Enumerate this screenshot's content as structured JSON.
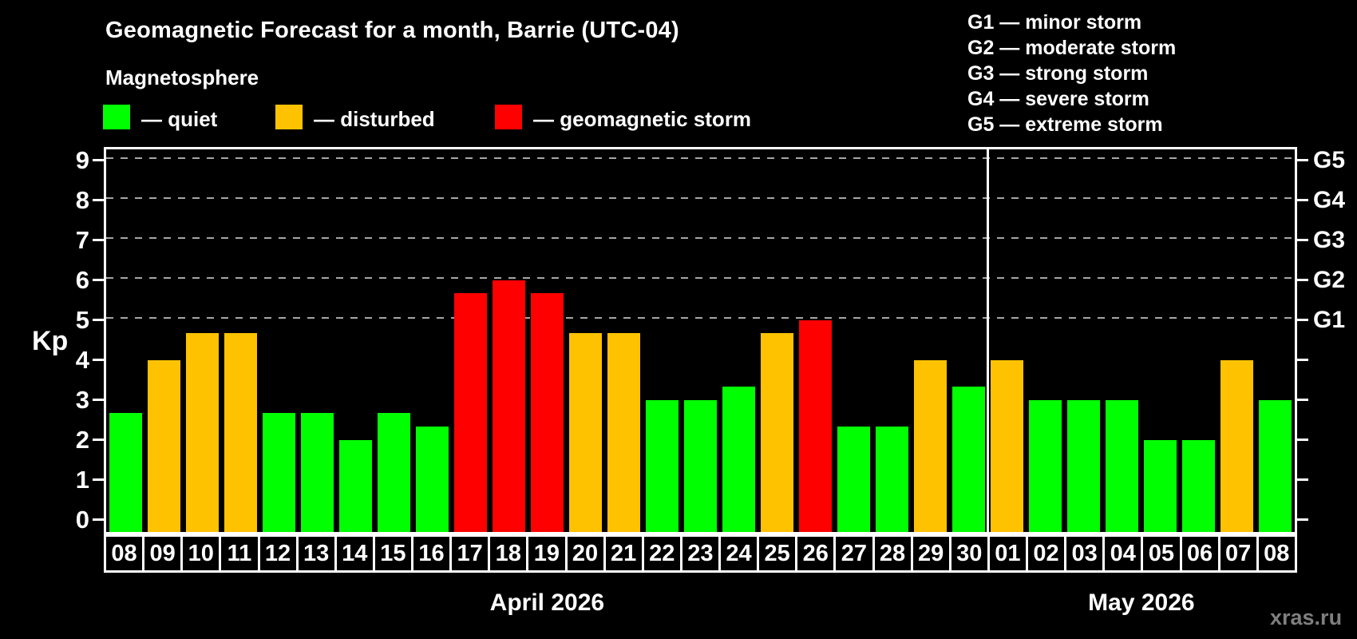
{
  "title": "Geomagnetic Forecast for a month, Barrie (UTC-04)",
  "subtitle": "Magnetosphere",
  "legend": {
    "items": [
      {
        "key": "quiet",
        "label": "— quiet"
      },
      {
        "key": "disturbed",
        "label": "— disturbed"
      },
      {
        "key": "storm",
        "label": "— geomagnetic storm"
      }
    ]
  },
  "storm_scale_legend": [
    "G1 — minor storm",
    "G2 — moderate storm",
    "G3 — strong storm",
    "G4 — severe storm",
    "G5 — extreme storm"
  ],
  "watermark": "xras.ru",
  "chart_data": {
    "type": "bar",
    "title": "Geomagnetic Forecast for a month, Barrie (UTC-04)",
    "ylabel": "Kp",
    "ylim": [
      0,
      9
    ],
    "yticks": [
      0,
      1,
      2,
      3,
      4,
      5,
      6,
      7,
      8,
      9
    ],
    "gridlines_at": [
      5,
      6,
      7,
      8,
      9
    ],
    "grid": "dashed horizontal at Kp 5-9 only",
    "right_axis": [
      {
        "kp": 5,
        "label": "G1"
      },
      {
        "kp": 6,
        "label": "G2"
      },
      {
        "kp": 7,
        "label": "G3"
      },
      {
        "kp": 8,
        "label": "G4"
      },
      {
        "kp": 9,
        "label": "G5"
      }
    ],
    "categories": [
      "08",
      "09",
      "10",
      "11",
      "12",
      "13",
      "14",
      "15",
      "16",
      "17",
      "18",
      "19",
      "20",
      "21",
      "22",
      "23",
      "24",
      "25",
      "26",
      "27",
      "28",
      "29",
      "30",
      "01",
      "02",
      "03",
      "04",
      "05",
      "06",
      "07",
      "08"
    ],
    "values": [
      2.67,
      4,
      4.67,
      4.67,
      2.67,
      2.67,
      2,
      2.67,
      2.33,
      5.67,
      6,
      5.67,
      4.67,
      4.67,
      3,
      3,
      3.33,
      4.67,
      5,
      2.33,
      2.33,
      4,
      3.33,
      4,
      3,
      3,
      3,
      2,
      2,
      4,
      3
    ],
    "status": [
      "quiet",
      "disturbed",
      "disturbed",
      "disturbed",
      "quiet",
      "quiet",
      "quiet",
      "quiet",
      "quiet",
      "storm",
      "storm",
      "storm",
      "disturbed",
      "disturbed",
      "quiet",
      "quiet",
      "quiet",
      "disturbed",
      "storm",
      "quiet",
      "quiet",
      "disturbed",
      "quiet",
      "disturbed",
      "quiet",
      "quiet",
      "quiet",
      "quiet",
      "quiet",
      "disturbed",
      "quiet"
    ],
    "colors": {
      "quiet": "#00ff00",
      "disturbed": "#ffc200",
      "storm": "#ff0000"
    },
    "months": [
      {
        "label": "April 2026",
        "days": 23
      },
      {
        "label": "May 2026",
        "days": 8
      }
    ]
  }
}
